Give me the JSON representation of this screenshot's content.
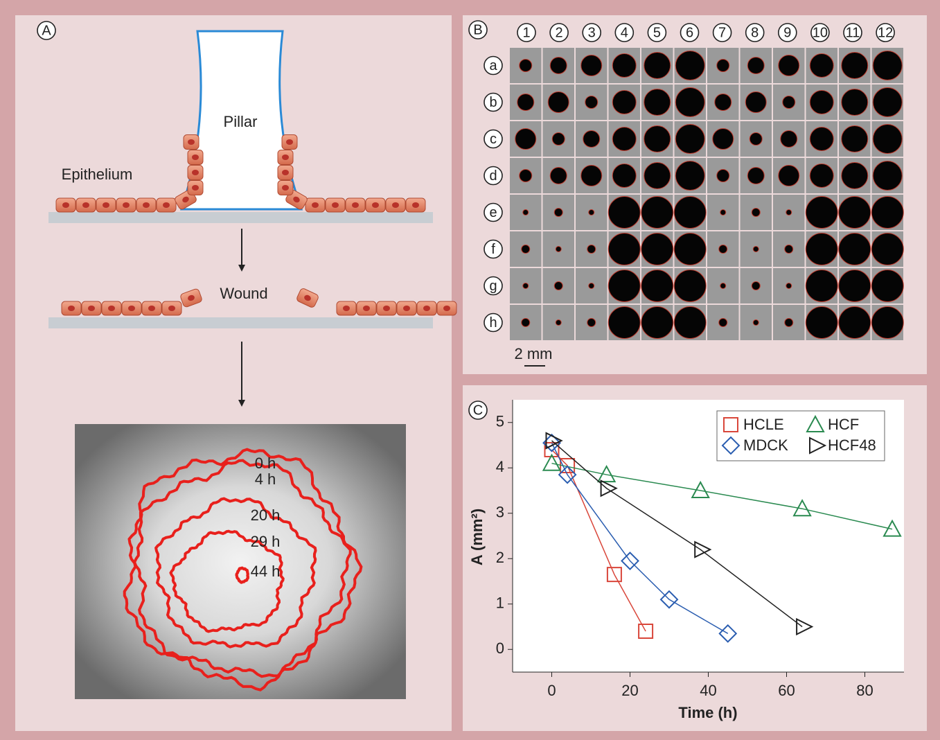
{
  "panel_a": {
    "label": "A",
    "pillar": "Pillar",
    "epithelium": "Epithelium",
    "wound": "Wound",
    "time_labels": [
      "0 h",
      "4 h",
      "20 h",
      "29 h",
      "44 h"
    ]
  },
  "panel_b": {
    "label": "B",
    "columns": [
      "1",
      "2",
      "3",
      "4",
      "5",
      "6",
      "7",
      "8",
      "9",
      "10",
      "11",
      "12"
    ],
    "rows": [
      "a",
      "b",
      "c",
      "d",
      "e",
      "f",
      "g",
      "h"
    ],
    "scale_bar": "2 mm"
  },
  "chart_data": {
    "type": "line",
    "label": "C",
    "x_label": "Time (h)",
    "y_label": "A (mm²)",
    "xlim": [
      -10,
      90
    ],
    "ylim": [
      -0.5,
      5.5
    ],
    "xticks": [
      0,
      20,
      40,
      60,
      80
    ],
    "yticks": [
      0,
      1,
      2,
      3,
      4,
      5
    ],
    "legend": "upper right",
    "series": [
      {
        "name": "HCLE",
        "color": "#d9463a",
        "marker": "square",
        "x": [
          0,
          4,
          16,
          24
        ],
        "values": [
          4.4,
          4.05,
          1.65,
          0.4
        ]
      },
      {
        "name": "HCF",
        "color": "#2a8a50",
        "marker": "triangle-up",
        "x": [
          0,
          14,
          38,
          64,
          87
        ],
        "values": [
          4.1,
          3.85,
          3.5,
          3.1,
          2.65
        ]
      },
      {
        "name": "MDCK",
        "color": "#2a5db0",
        "marker": "diamond",
        "x": [
          0,
          4,
          20,
          30,
          45
        ],
        "values": [
          4.55,
          3.85,
          1.95,
          1.1,
          0.35
        ]
      },
      {
        "name": "HCF48",
        "color": "#222222",
        "marker": "triangle-right",
        "x": [
          0,
          14,
          38,
          64
        ],
        "values": [
          4.6,
          3.55,
          2.2,
          0.5
        ]
      }
    ]
  }
}
